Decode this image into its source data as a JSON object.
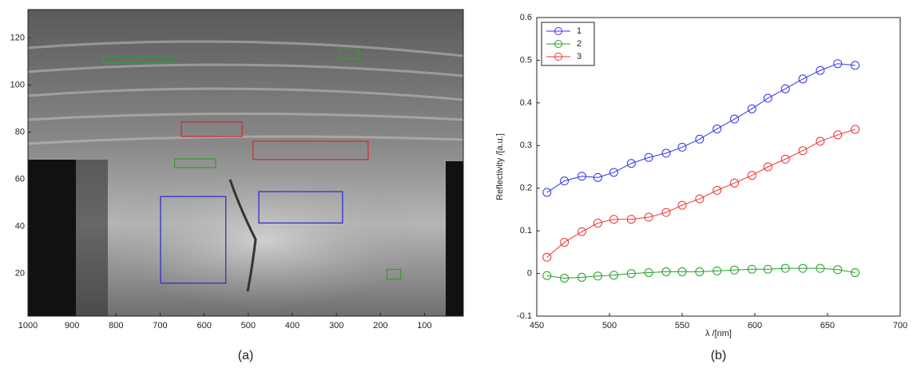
{
  "chart_data": [
    {
      "type": "image",
      "caption": "(a)",
      "xlim": [
        1000,
        12
      ],
      "ylim": [
        2,
        132
      ],
      "xticks": [
        1000,
        900,
        800,
        700,
        600,
        500,
        400,
        300,
        200,
        100
      ],
      "yticks": [
        20,
        40,
        60,
        80,
        100,
        120
      ],
      "regions": [
        {
          "color": "#3a9a3a",
          "x": [
            828,
            670
          ],
          "y": [
            109.5,
            112.3
          ]
        },
        {
          "color": "#3a9a3a",
          "x": [
            293,
            250
          ],
          "y": [
            111.2,
            115.2
          ]
        },
        {
          "color": "#d03030",
          "x": [
            652,
            514
          ],
          "y": [
            78.2,
            84.4
          ]
        },
        {
          "color": "#d03030",
          "x": [
            489,
            228
          ],
          "y": [
            68.4,
            76.2
          ]
        },
        {
          "color": "#3a9a3a",
          "x": [
            667,
            574
          ],
          "y": [
            65,
            68.7
          ]
        },
        {
          "color": "#3030d0",
          "x": [
            699,
            551
          ],
          "y": [
            16,
            52.7
          ]
        },
        {
          "color": "#3030d0",
          "x": [
            476,
            286
          ],
          "y": [
            41.5,
            54.8
          ]
        },
        {
          "color": "#3a9a3a",
          "x": [
            185,
            154
          ],
          "y": [
            17.7,
            21.8
          ]
        }
      ]
    },
    {
      "type": "line",
      "caption": "(b)",
      "x_label": "λ /[nm]",
      "y_label": "Reflectivity /[a.u.]",
      "xlim": [
        450,
        700
      ],
      "ylim": [
        -0.1,
        0.6
      ],
      "xticks": [
        450,
        500,
        550,
        600,
        650,
        700
      ],
      "yticks": [
        -0.1,
        0,
        0.1,
        0.2,
        0.3,
        0.4,
        0.5,
        0.6
      ],
      "legend": "upper-left",
      "x": [
        457,
        469,
        481,
        492,
        503,
        515,
        527,
        539,
        550,
        562,
        574,
        586,
        598,
        609,
        621,
        633,
        645,
        657,
        669
      ],
      "series": [
        {
          "name": "1",
          "color": "#3333ee",
          "values": [
            0.19,
            0.217,
            0.228,
            0.225,
            0.237,
            0.258,
            0.272,
            0.282,
            0.296,
            0.315,
            0.339,
            0.362,
            0.386,
            0.411,
            0.433,
            0.456,
            0.476,
            0.492,
            0.488
          ]
        },
        {
          "name": "2",
          "color": "#22a022",
          "values": [
            -0.005,
            -0.011,
            -0.009,
            -0.006,
            -0.004,
            0.0,
            0.002,
            0.004,
            0.004,
            0.004,
            0.006,
            0.008,
            0.01,
            0.01,
            0.012,
            0.012,
            0.012,
            0.009,
            0.002
          ]
        },
        {
          "name": "3",
          "color": "#ee3333",
          "values": [
            0.038,
            0.073,
            0.098,
            0.118,
            0.127,
            0.127,
            0.132,
            0.143,
            0.16,
            0.175,
            0.195,
            0.212,
            0.23,
            0.25,
            0.268,
            0.288,
            0.31,
            0.325,
            0.338
          ]
        }
      ]
    }
  ]
}
